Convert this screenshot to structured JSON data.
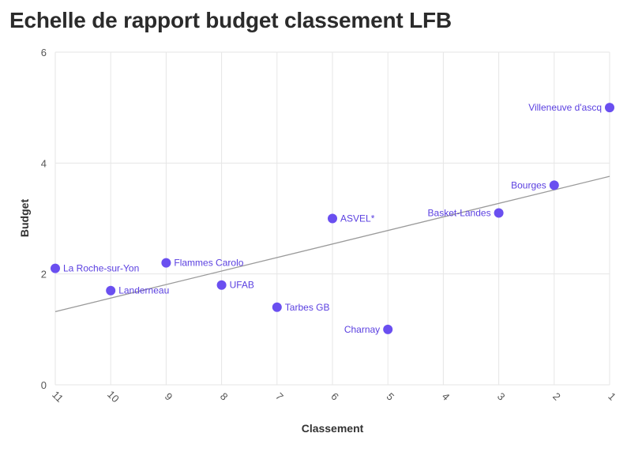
{
  "chart_data": {
    "type": "scatter",
    "title": "Echelle de rapport budget classement LFB",
    "xlabel": "Classement",
    "ylabel": "Budget",
    "x_reversed": true,
    "xlim": [
      11,
      1
    ],
    "ylim": [
      0,
      6
    ],
    "xticks": [
      "11",
      "10",
      "9",
      "8",
      "7",
      "6",
      "5",
      "4",
      "3",
      "2",
      "1"
    ],
    "yticks": [
      "0",
      "2",
      "4",
      "6"
    ],
    "grid": true,
    "point_color": "#6a4ff0",
    "trendline_color": "#9a9a9a",
    "points": [
      {
        "label": "La Roche-sur-Yon",
        "x": 11,
        "y": 2.1,
        "label_side": "right"
      },
      {
        "label": "Landerneau",
        "x": 10,
        "y": 1.7,
        "label_side": "right"
      },
      {
        "label": "Flammes Carolo",
        "x": 9,
        "y": 2.2,
        "label_side": "right"
      },
      {
        "label": "UFAB",
        "x": 8,
        "y": 1.8,
        "label_side": "right"
      },
      {
        "label": "Tarbes GB",
        "x": 7,
        "y": 1.4,
        "label_side": "right"
      },
      {
        "label": "ASVEL*",
        "x": 6,
        "y": 3.0,
        "label_side": "right"
      },
      {
        "label": "Charnay",
        "x": 5,
        "y": 1.0,
        "label_side": "left"
      },
      {
        "label": "Basket-Landes",
        "x": 3,
        "y": 3.1,
        "label_side": "left"
      },
      {
        "label": "Bourges",
        "x": 2,
        "y": 3.6,
        "label_side": "left"
      },
      {
        "label": "Villeneuve d'ascq",
        "x": 1,
        "y": 5.0,
        "label_side": "left"
      }
    ],
    "trendline": {
      "x": [
        11,
        1
      ],
      "y": [
        1.32,
        3.76
      ]
    }
  }
}
